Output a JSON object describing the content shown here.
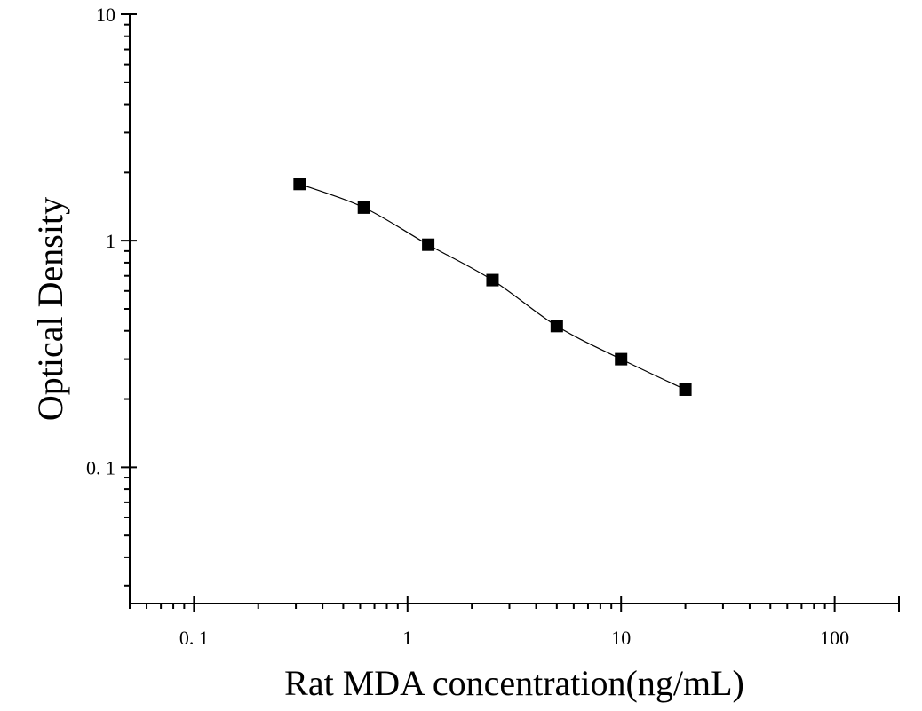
{
  "chart_data": {
    "type": "scatter",
    "xlabel": "Rat MDA concentration(ng/mL)",
    "ylabel": "Optical Density",
    "x_scale": "log",
    "y_scale": "log",
    "xlim": [
      0.05,
      200
    ],
    "ylim": [
      0.025,
      10
    ],
    "x_ticks": [
      {
        "value": 0.1,
        "label": "0. 1"
      },
      {
        "value": 1,
        "label": "1"
      },
      {
        "value": 10,
        "label": "10"
      },
      {
        "value": 100,
        "label": "100"
      }
    ],
    "y_ticks": [
      {
        "value": 0.1,
        "label": "0. 1"
      },
      {
        "value": 1,
        "label": "1"
      },
      {
        "value": 10,
        "label": "10"
      }
    ],
    "grid": false,
    "series": [
      {
        "marker": "square",
        "color": "#000000",
        "fit": "4-parameter logistic curve",
        "x": [
          0.3125,
          0.625,
          1.25,
          2.5,
          5,
          10,
          20
        ],
        "y": [
          1.78,
          1.4,
          0.96,
          0.67,
          0.42,
          0.3,
          0.22
        ]
      }
    ]
  }
}
